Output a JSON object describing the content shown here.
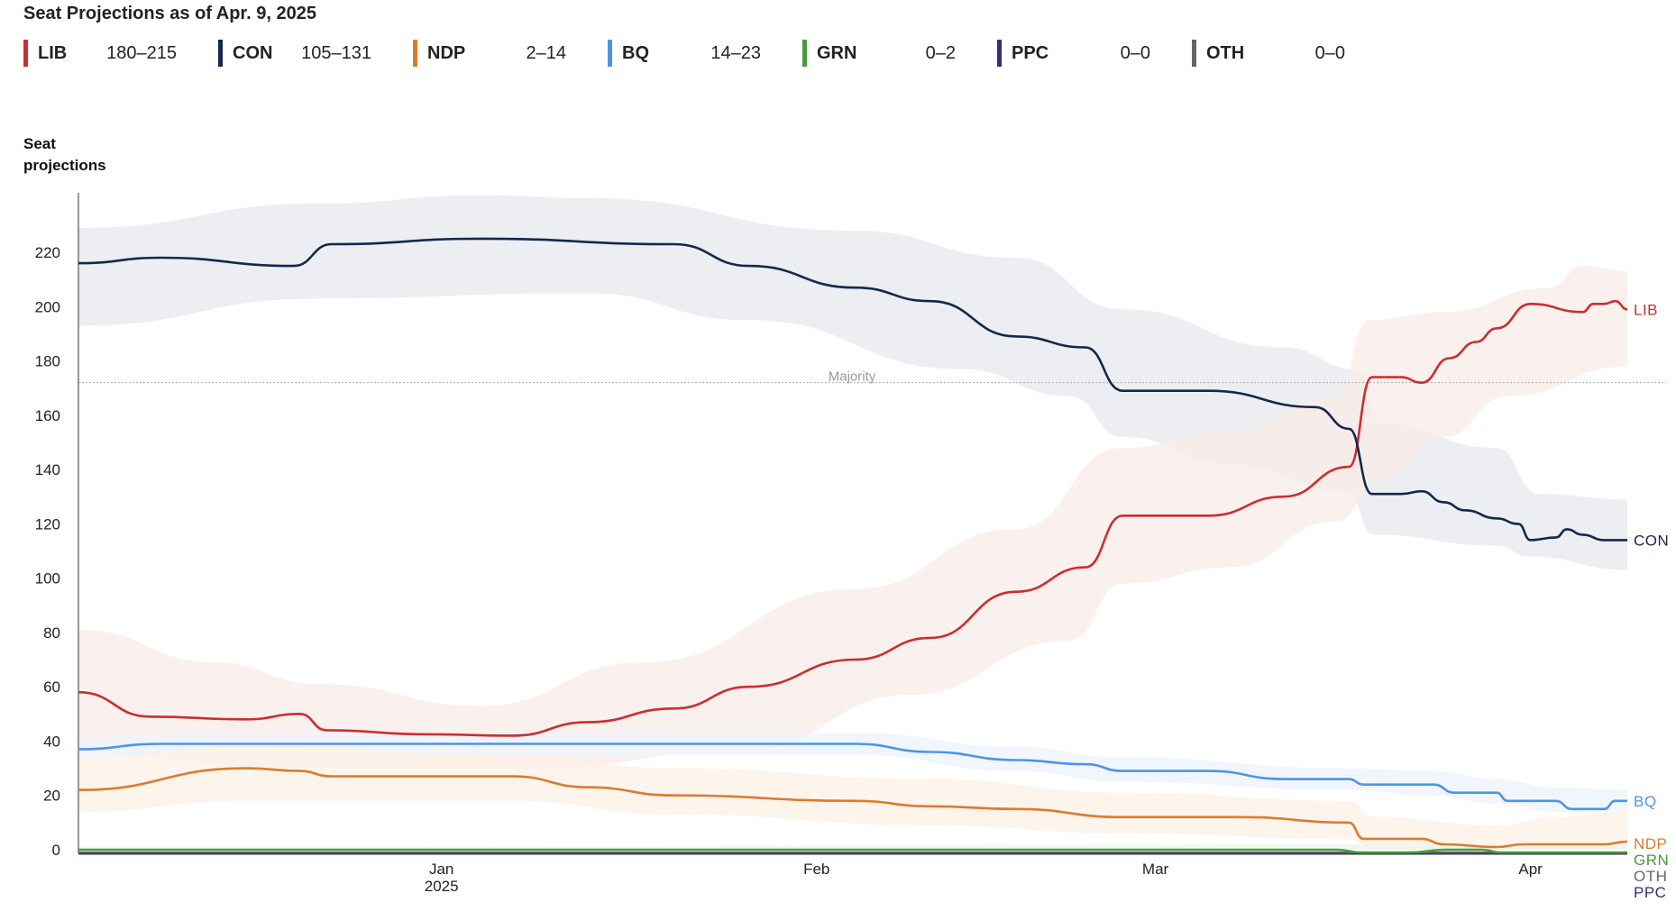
{
  "title": "Seat Projections as of Apr. 9, 2025",
  "legend": [
    {
      "label": "LIB",
      "range": "180–215",
      "color": "#cc2e2e"
    },
    {
      "label": "CON",
      "range": "105–131",
      "color": "#14284b"
    },
    {
      "label": "NDP",
      "range": "2–14",
      "color": "#de7a2e"
    },
    {
      "label": "BQ",
      "range": "14–23",
      "color": "#4f93e6"
    },
    {
      "label": "GRN",
      "range": "0–2",
      "color": "#4a9a3c"
    },
    {
      "label": "PPC",
      "range": "0–0",
      "color": "#3c2a78"
    },
    {
      "label": "OTH",
      "range": "0–0",
      "color": "#666666"
    }
  ],
  "chart_data": {
    "type": "line",
    "title": "Seat Projections as of Apr. 9, 2025",
    "ylabel": "Seat projections",
    "xlabel": "",
    "x_unit": "days since Dec. 2, 2024",
    "xlim": [
      0,
      128
    ],
    "ylim": [
      0,
      240
    ],
    "yticks": [
      0,
      20,
      40,
      60,
      80,
      100,
      120,
      140,
      160,
      180,
      200,
      220
    ],
    "xticks": [
      {
        "day": 30,
        "label": "Jan",
        "sublabel": "2025"
      },
      {
        "day": 61,
        "label": "Feb",
        "sublabel": ""
      },
      {
        "day": 89,
        "label": "Mar",
        "sublabel": ""
      },
      {
        "day": 120,
        "label": "Apr",
        "sublabel": ""
      }
    ],
    "majority": {
      "value": 172,
      "label": "Majority"
    },
    "series": [
      {
        "name": "CON",
        "color": "#14284b",
        "band": "#e9ebee",
        "line": [
          [
            0,
            216
          ],
          [
            6.8,
            218
          ],
          [
            17.8,
            215
          ],
          [
            20.9,
            223
          ],
          [
            33.3,
            225
          ],
          [
            49.2,
            223
          ],
          [
            55.4,
            215
          ],
          [
            64.2,
            207
          ],
          [
            70.4,
            202
          ],
          [
            77.5,
            189
          ],
          [
            83.2,
            185
          ],
          [
            86.3,
            169
          ],
          [
            93.4,
            169
          ],
          [
            102.2,
            163
          ],
          [
            105,
            155
          ],
          [
            106.9,
            131
          ],
          [
            109.3,
            131
          ],
          [
            111,
            132
          ],
          [
            112.8,
            128
          ],
          [
            114.6,
            125
          ],
          [
            117.2,
            122
          ],
          [
            119,
            120
          ],
          [
            120,
            114
          ],
          [
            122.1,
            115
          ],
          [
            123,
            118
          ],
          [
            124.3,
            116
          ],
          [
            126.1,
            114
          ],
          [
            128,
            114
          ]
        ],
        "high": [
          [
            0,
            229
          ],
          [
            20,
            238
          ],
          [
            33.3,
            241
          ],
          [
            42,
            240
          ],
          [
            64,
            228
          ],
          [
            77.5,
            218
          ],
          [
            86.3,
            199
          ],
          [
            99.5,
            185
          ],
          [
            105.7,
            177
          ],
          [
            107.5,
            157
          ],
          [
            117.2,
            148
          ],
          [
            120.7,
            131
          ],
          [
            128,
            129
          ]
        ],
        "low": [
          [
            0,
            193
          ],
          [
            20,
            203
          ],
          [
            42,
            205
          ],
          [
            55.4,
            195
          ],
          [
            73,
            177
          ],
          [
            81.9,
            167
          ],
          [
            86.3,
            152
          ],
          [
            95.1,
            142
          ],
          [
            104.9,
            132
          ],
          [
            107,
            116
          ],
          [
            117.2,
            112
          ],
          [
            119.9,
            108
          ],
          [
            128,
            103
          ]
        ]
      },
      {
        "name": "LIB",
        "color": "#cc2e2e",
        "band": "#f9ecea",
        "line": [
          [
            0,
            58
          ],
          [
            5.9,
            49
          ],
          [
            13.9,
            48
          ],
          [
            18.3,
            50
          ],
          [
            20.5,
            44
          ],
          [
            28.9,
            42.5
          ],
          [
            35.9,
            42
          ],
          [
            42.1,
            47
          ],
          [
            49.2,
            52
          ],
          [
            55.4,
            60
          ],
          [
            64.2,
            70
          ],
          [
            70.4,
            78
          ],
          [
            77.5,
            95
          ],
          [
            83.2,
            104
          ],
          [
            86.3,
            123
          ],
          [
            93.4,
            123
          ],
          [
            99.6,
            130
          ],
          [
            105,
            141
          ],
          [
            106.9,
            174
          ],
          [
            109.3,
            174
          ],
          [
            111,
            172
          ],
          [
            113.3,
            181
          ],
          [
            115.5,
            187
          ],
          [
            117.2,
            192
          ],
          [
            120,
            201
          ],
          [
            124.3,
            198
          ],
          [
            125.2,
            201
          ],
          [
            126.1,
            201
          ],
          [
            127,
            202
          ],
          [
            128,
            199
          ]
        ],
        "high": [
          [
            0,
            81
          ],
          [
            11.2,
            69
          ],
          [
            20,
            61
          ],
          [
            33.3,
            53
          ],
          [
            46.6,
            69
          ],
          [
            64.2,
            96
          ],
          [
            77.5,
            118
          ],
          [
            86.3,
            148
          ],
          [
            95.1,
            154
          ],
          [
            104,
            167
          ],
          [
            106.6,
            195
          ],
          [
            112.8,
            198
          ],
          [
            121.6,
            207
          ],
          [
            124.3,
            215
          ],
          [
            128,
            213
          ]
        ],
        "low": [
          [
            0,
            35
          ],
          [
            20,
            30
          ],
          [
            37.7,
            30
          ],
          [
            55.4,
            37
          ],
          [
            68.6,
            57
          ],
          [
            81.9,
            77
          ],
          [
            86.3,
            98
          ],
          [
            95.1,
            104
          ],
          [
            104,
            121
          ],
          [
            107.5,
            136
          ],
          [
            112.8,
            152
          ],
          [
            118.1,
            167
          ],
          [
            128,
            178
          ]
        ]
      },
      {
        "name": "BQ",
        "color": "#4f93e6",
        "band": "#edf4fc",
        "line": [
          [
            0,
            37
          ],
          [
            6.8,
            39
          ],
          [
            64.2,
            39
          ],
          [
            70.4,
            36
          ],
          [
            77.5,
            33
          ],
          [
            83.2,
            31.5
          ],
          [
            86.3,
            29
          ],
          [
            93.4,
            29
          ],
          [
            99.6,
            26
          ],
          [
            105,
            26
          ],
          [
            106.2,
            24
          ],
          [
            112,
            24
          ],
          [
            113.7,
            21
          ],
          [
            117.2,
            21
          ],
          [
            118.1,
            18
          ],
          [
            122.1,
            18
          ],
          [
            123.4,
            15
          ],
          [
            126.1,
            15
          ],
          [
            127,
            18
          ],
          [
            128,
            18
          ]
        ],
        "high": [
          [
            0,
            41
          ],
          [
            6.8,
            43
          ],
          [
            64.2,
            43
          ],
          [
            77.5,
            38
          ],
          [
            86.3,
            34
          ],
          [
            105,
            30
          ],
          [
            112,
            29
          ],
          [
            117.2,
            26
          ],
          [
            122.1,
            23
          ],
          [
            128,
            22
          ]
        ],
        "low": [
          [
            0,
            33
          ],
          [
            6.8,
            35
          ],
          [
            64.2,
            35
          ],
          [
            77.5,
            29
          ],
          [
            86.3,
            25
          ],
          [
            105,
            22
          ],
          [
            112,
            20
          ],
          [
            117.2,
            17
          ],
          [
            122.1,
            14
          ],
          [
            128,
            14
          ]
        ]
      },
      {
        "name": "NDP",
        "color": "#de7a2e",
        "band": "#fcf1e7",
        "line": [
          [
            0,
            22
          ],
          [
            13.9,
            30
          ],
          [
            18.3,
            29
          ],
          [
            20.9,
            27
          ],
          [
            35.9,
            27
          ],
          [
            42.1,
            23
          ],
          [
            49.2,
            20
          ],
          [
            64.2,
            18
          ],
          [
            70.4,
            16
          ],
          [
            77.5,
            15
          ],
          [
            86.3,
            12
          ],
          [
            96,
            12
          ],
          [
            105,
            10
          ],
          [
            106.2,
            4
          ],
          [
            111,
            4
          ],
          [
            112.8,
            2
          ],
          [
            117.2,
            1
          ],
          [
            119.4,
            2
          ],
          [
            126.1,
            2
          ],
          [
            128,
            3
          ]
        ],
        "high": [
          [
            0,
            34
          ],
          [
            13.9,
            38
          ],
          [
            35.9,
            35
          ],
          [
            49.2,
            30
          ],
          [
            70.4,
            26
          ],
          [
            86.3,
            21
          ],
          [
            105,
            18
          ],
          [
            107,
            12
          ],
          [
            117.2,
            9
          ],
          [
            122,
            12
          ],
          [
            128,
            14
          ]
        ],
        "low": [
          [
            0,
            14
          ],
          [
            13.9,
            18
          ],
          [
            35.9,
            18
          ],
          [
            49.2,
            13
          ],
          [
            70.4,
            9
          ],
          [
            86.3,
            6
          ],
          [
            105,
            4
          ],
          [
            107,
            0
          ],
          [
            128,
            0
          ]
        ]
      },
      {
        "name": "GRN",
        "color": "#4a9a3c",
        "band": "#eef6ec",
        "line": [
          [
            0,
            0
          ],
          [
            104,
            0
          ],
          [
            106,
            -1
          ],
          [
            110,
            -1
          ],
          [
            113,
            0
          ],
          [
            116,
            0
          ],
          [
            117.5,
            -1
          ],
          [
            128,
            -1
          ]
        ],
        "high": [
          [
            0,
            1
          ],
          [
            128,
            2
          ]
        ],
        "low": [
          [
            0,
            0
          ],
          [
            128,
            0
          ]
        ]
      },
      {
        "name": "OTH",
        "color": "#666666",
        "band": null,
        "line": [
          [
            0,
            -1.3
          ],
          [
            128,
            -1.3
          ]
        ]
      },
      {
        "name": "PPC",
        "color": "#3c2a78",
        "band": null,
        "line": [
          [
            0,
            -1.6
          ],
          [
            128,
            -1.6
          ]
        ]
      }
    ],
    "end_labels": [
      "LIB",
      "CON",
      "BQ",
      "NDP",
      "GRN",
      "OTH",
      "PPC"
    ],
    "grid": false,
    "legend_position": "top"
  }
}
